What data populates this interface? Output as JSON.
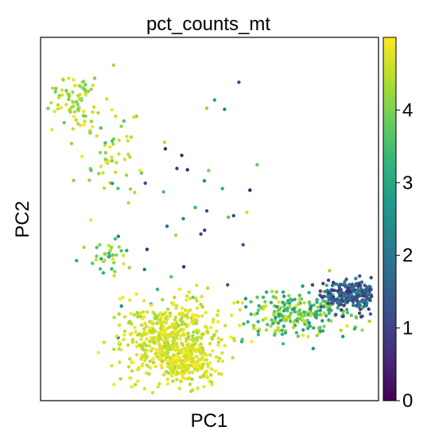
{
  "chart_data": {
    "type": "scatter",
    "title": "pct_counts_mt",
    "xlabel": "PC1",
    "ylabel": "PC2",
    "x_ticks_shown": false,
    "y_ticks_shown": false,
    "grid": false,
    "xlim": [
      0,
      100
    ],
    "ylim": [
      0,
      100
    ],
    "colorbar": {
      "label": "",
      "colormap": "viridis",
      "range": [
        0,
        5
      ],
      "ticks": [
        0,
        1,
        2,
        3,
        4
      ],
      "tick_labels": [
        "0",
        "1",
        "2",
        "3",
        "4"
      ],
      "stops": [
        "#440154",
        "#482878",
        "#3e4989",
        "#31688e",
        "#26828e",
        "#1f9e89",
        "#35b779",
        "#6ece58",
        "#b5de2b",
        "#fde725"
      ]
    },
    "point_clusters": [
      {
        "name": "upper-left",
        "cx": 10,
        "cy": 83,
        "sx": 4,
        "sy": 4,
        "n": 80,
        "cmin": 3.8,
        "cmax": 5.0
      },
      {
        "name": "upper-diagonal",
        "cx": 22,
        "cy": 67,
        "sx": 6,
        "sy": 8,
        "n": 55,
        "cmin": 3.5,
        "cmax": 5.0
      },
      {
        "name": "left-middle",
        "cx": 21,
        "cy": 40,
        "sx": 4,
        "sy": 3,
        "n": 35,
        "cmin": 3.0,
        "cmax": 4.8
      },
      {
        "name": "sparse-middle",
        "cx": 45,
        "cy": 55,
        "sx": 10,
        "sy": 14,
        "n": 40,
        "cmin": 0.3,
        "cmax": 4.8
      },
      {
        "name": "main-blob",
        "cx": 38,
        "cy": 17,
        "sx": 7,
        "sy": 6,
        "n": 500,
        "cmin": 4.3,
        "cmax": 5.0
      },
      {
        "name": "main-blob-tail",
        "cx": 44,
        "cy": 10,
        "sx": 4,
        "sy": 3,
        "n": 150,
        "cmin": 4.5,
        "cmax": 5.0
      },
      {
        "name": "right-trail",
        "cx": 76,
        "cy": 24,
        "sx": 8,
        "sy": 3,
        "n": 260,
        "cmin": 2.5,
        "cmax": 4.9
      },
      {
        "name": "right-tip",
        "cx": 92,
        "cy": 29,
        "sx": 4,
        "sy": 2,
        "n": 260,
        "cmin": 0.6,
        "cmax": 2.4
      }
    ]
  }
}
